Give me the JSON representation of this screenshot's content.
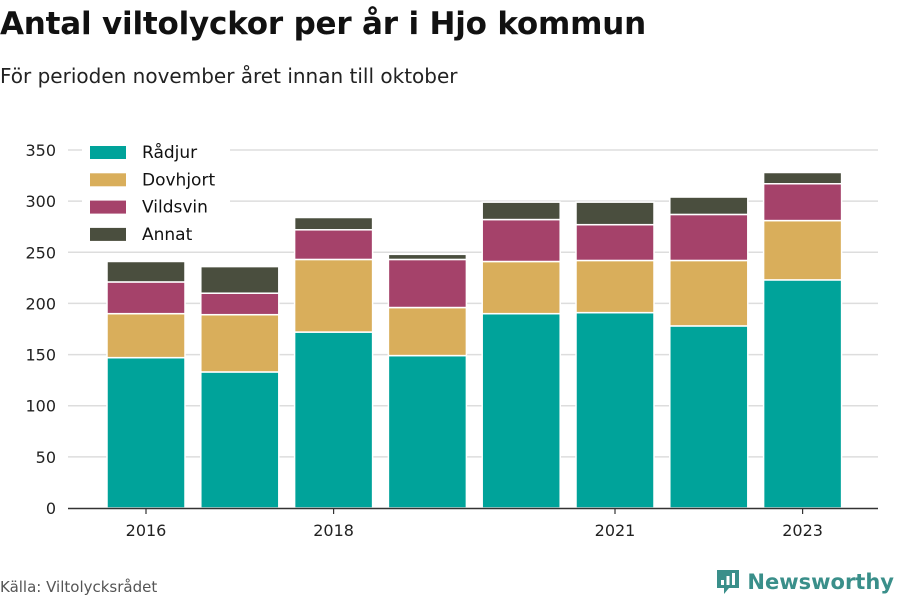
{
  "title": "Antal viltolyckor per år i Hjo kommun",
  "subtitle": "För perioden november året innan till oktober",
  "source": "Källa: Viltolycksrådet",
  "brand": {
    "name": "Newsworthy",
    "logo_icon": "bar-chart-logo-icon",
    "color": "#3a8f8a"
  },
  "chart_data": {
    "type": "bar",
    "stacked": true,
    "categories": [
      "2016",
      "2017",
      "2018",
      "2019",
      "2020",
      "2021",
      "2022",
      "2023"
    ],
    "x_tick_labels": [
      "2016",
      "",
      "2018",
      "",
      "",
      "2021",
      "",
      "2023"
    ],
    "series": [
      {
        "name": "Rådjur",
        "color": "#00a39a",
        "values": [
          147,
          133,
          172,
          149,
          190,
          191,
          178,
          223
        ]
      },
      {
        "name": "Dovhjort",
        "color": "#d9ae5b",
        "values": [
          43,
          56,
          71,
          47,
          51,
          51,
          64,
          58
        ]
      },
      {
        "name": "Vildsvin",
        "color": "#a5426a",
        "values": [
          31,
          21,
          29,
          47,
          41,
          35,
          45,
          36
        ]
      },
      {
        "name": "Annat",
        "color": "#4a4e3e",
        "values": [
          20,
          26,
          12,
          5,
          17,
          22,
          17,
          11
        ]
      }
    ],
    "ylim": [
      0,
      350
    ],
    "yticks": [
      0,
      50,
      100,
      150,
      200,
      250,
      300,
      350
    ],
    "grid": true,
    "legend_position": "top-left"
  }
}
